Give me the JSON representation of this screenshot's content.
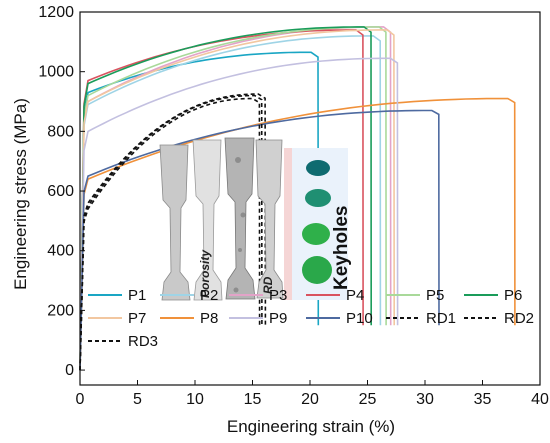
{
  "chart_data": {
    "type": "line",
    "xlabel": "Engineering strain (%)",
    "ylabel": "Engineering stress (MPa)",
    "xlim": [
      0,
      40
    ],
    "ylim": [
      -50,
      1200
    ],
    "x_ticks": [
      0,
      5,
      10,
      15,
      20,
      25,
      30,
      35,
      40
    ],
    "y_ticks": [
      0,
      200,
      400,
      600,
      800,
      1000,
      1200
    ],
    "grid": false,
    "legend_placement": "bottom-left inside, 6 columns",
    "series": [
      {
        "name": "P1",
        "color": "#1aa6c4",
        "dash": "solid",
        "yield": 930,
        "uts": 1065,
        "fracture_strain": 20.7
      },
      {
        "name": "P2",
        "color": "#9fd4e6",
        "dash": "solid",
        "yield": 890,
        "uts": 1120,
        "fracture_strain": 26.1
      },
      {
        "name": "P3",
        "color": "#e3a3c8",
        "dash": "solid",
        "yield": 900,
        "uts": 1150,
        "fracture_strain": 27.0
      },
      {
        "name": "P4",
        "color": "#d9535f",
        "dash": "solid",
        "yield": 970,
        "uts": 1140,
        "fracture_strain": 24.6
      },
      {
        "name": "P5",
        "color": "#a9d99a",
        "dash": "solid",
        "yield": 920,
        "uts": 1150,
        "fracture_strain": 26.6
      },
      {
        "name": "P6",
        "color": "#1a9c5a",
        "dash": "solid",
        "yield": 960,
        "uts": 1150,
        "fracture_strain": 25.3
      },
      {
        "name": "P7",
        "color": "#f2c7a0",
        "dash": "solid",
        "yield": 900,
        "uts": 1140,
        "fracture_strain": 27.3
      },
      {
        "name": "P8",
        "color": "#f0913a",
        "dash": "solid",
        "yield": 640,
        "uts": 910,
        "fracture_strain": 37.8
      },
      {
        "name": "P9",
        "color": "#c3c0e0",
        "dash": "solid",
        "yield": 800,
        "uts": 1045,
        "fracture_strain": 27.6
      },
      {
        "name": "P10",
        "color": "#4e6aa0",
        "dash": "solid",
        "yield": 650,
        "uts": 870,
        "fracture_strain": 31.2
      },
      {
        "name": "RD1",
        "color": "#111111",
        "dash": "dashed",
        "yield": 550,
        "uts": 920,
        "fracture_strain": 15.8
      },
      {
        "name": "RD2",
        "color": "#111111",
        "dash": "dashed",
        "yield": 560,
        "uts": 925,
        "fracture_strain": 16.1
      },
      {
        "name": "RD3",
        "color": "#111111",
        "dash": "dashed",
        "yield": 540,
        "uts": 910,
        "fracture_strain": 15.6
      }
    ],
    "annotations": {
      "porosity": "Porosity",
      "rd": "RD",
      "keyholes": "Keyholes"
    }
  }
}
